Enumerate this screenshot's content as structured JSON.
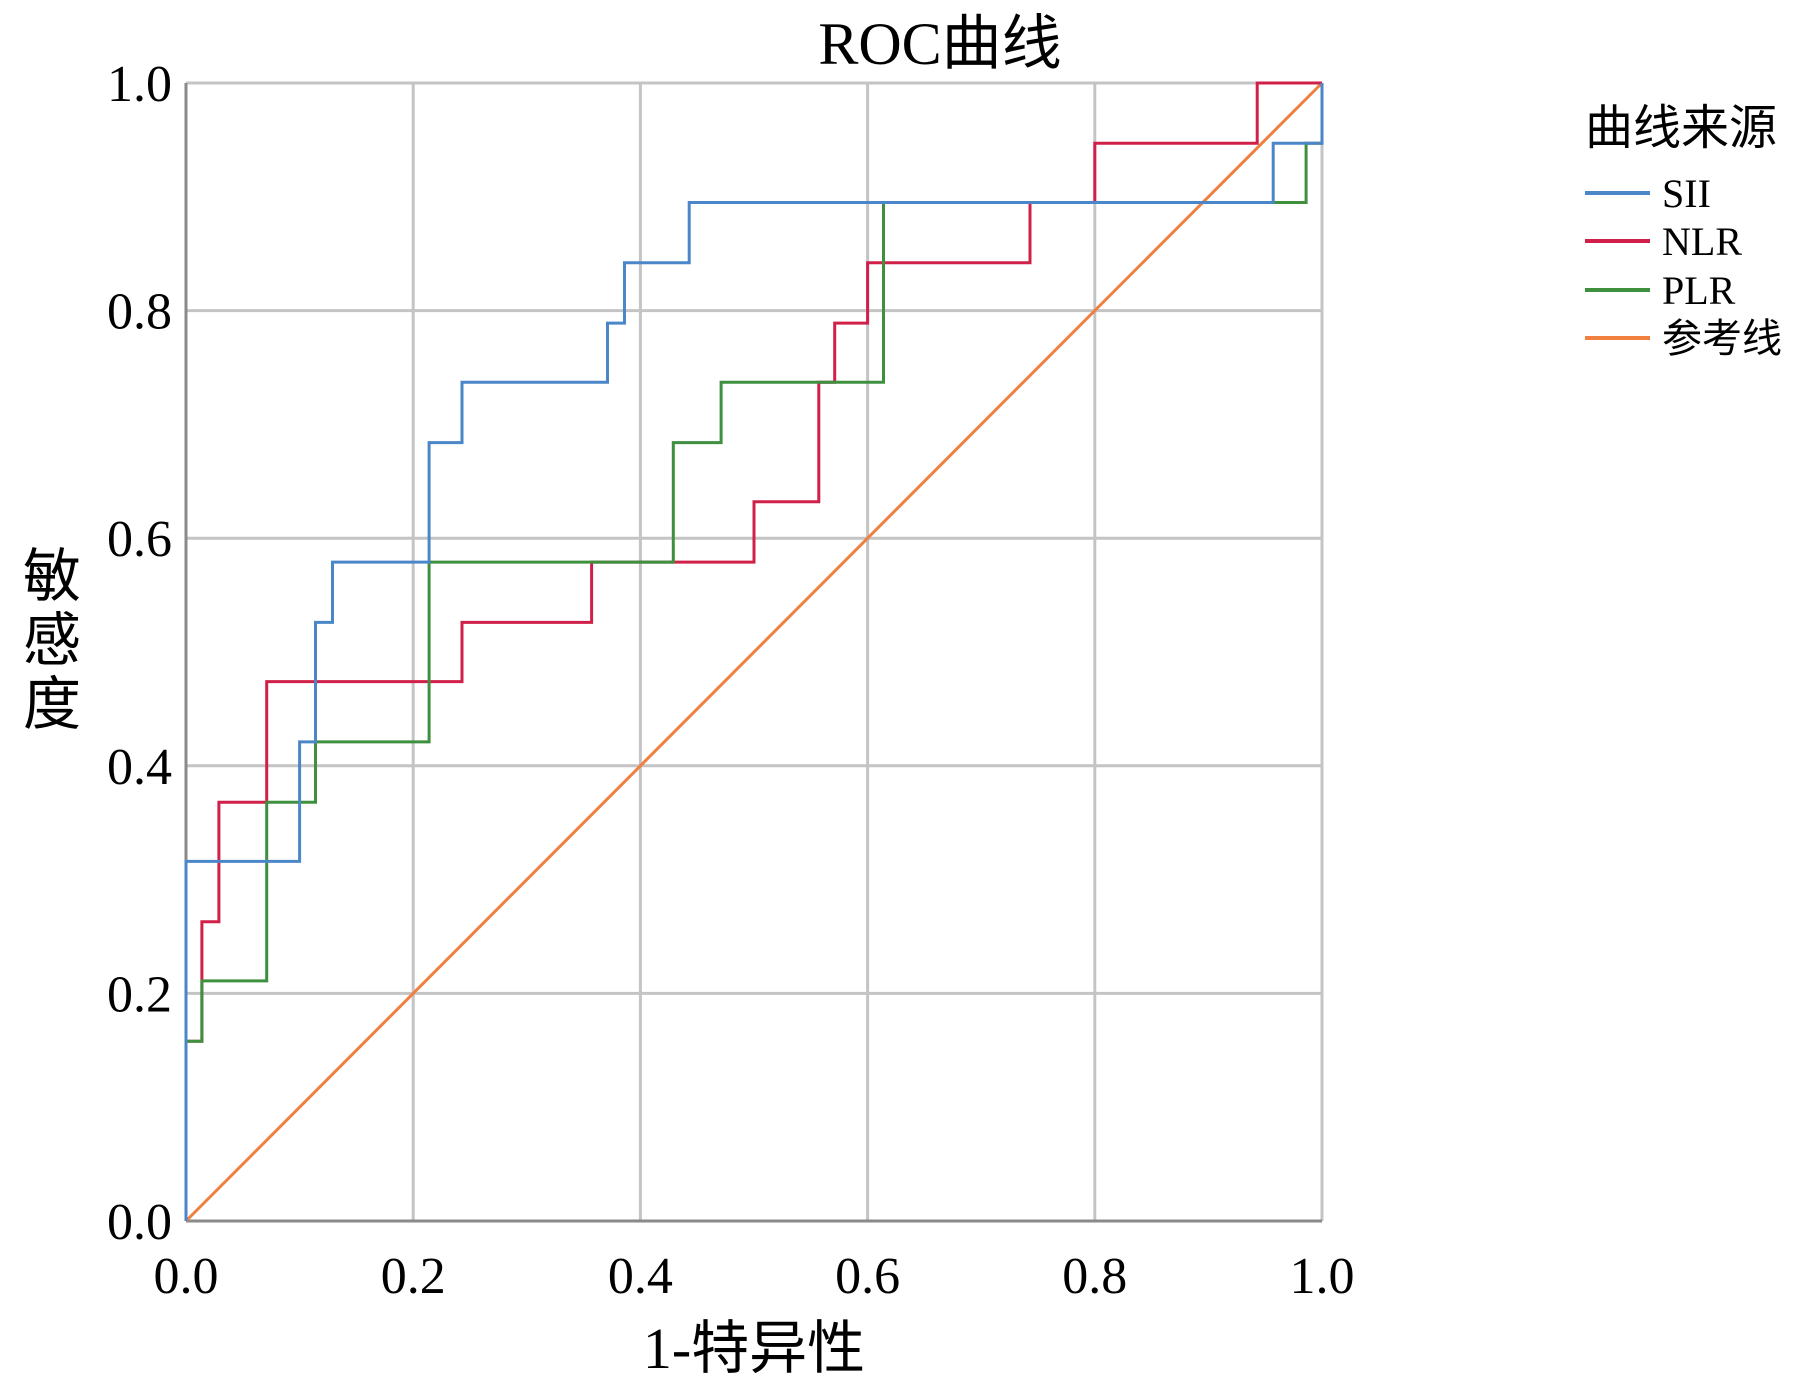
{
  "chart_data": {
    "type": "line",
    "title": "ROC曲线",
    "xlabel": "1-特异性",
    "ylabel": "敏感度",
    "xlim": [
      0,
      1
    ],
    "ylim": [
      0,
      1
    ],
    "x_ticks": [
      "0.0",
      "0.2",
      "0.4",
      "0.6",
      "0.8",
      "1.0"
    ],
    "y_ticks": [
      "0.0",
      "0.2",
      "0.4",
      "0.6",
      "0.8",
      "1.0"
    ],
    "grid": true,
    "legend_title": "曲线来源",
    "legend_position": "right",
    "step": true,
    "series": [
      {
        "name": "SII",
        "color": "#4a86c8",
        "points": [
          [
            0,
            0
          ],
          [
            0,
            0.158
          ],
          [
            0,
            0.316
          ],
          [
            0.1,
            0.316
          ],
          [
            0.1,
            0.421
          ],
          [
            0.114,
            0.421
          ],
          [
            0.114,
            0.526
          ],
          [
            0.129,
            0.526
          ],
          [
            0.129,
            0.579
          ],
          [
            0.214,
            0.579
          ],
          [
            0.214,
            0.684
          ],
          [
            0.243,
            0.684
          ],
          [
            0.243,
            0.737
          ],
          [
            0.371,
            0.737
          ],
          [
            0.371,
            0.789
          ],
          [
            0.386,
            0.789
          ],
          [
            0.386,
            0.842
          ],
          [
            0.443,
            0.842
          ],
          [
            0.443,
            0.895
          ],
          [
            0.957,
            0.895
          ],
          [
            0.957,
            0.947
          ],
          [
            1,
            0.947
          ],
          [
            1,
            1
          ]
        ]
      },
      {
        "name": "NLR",
        "color": "#d0204a",
        "points": [
          [
            0,
            0
          ],
          [
            0,
            0.158
          ],
          [
            0.014,
            0.158
          ],
          [
            0.014,
            0.263
          ],
          [
            0.029,
            0.263
          ],
          [
            0.029,
            0.368
          ],
          [
            0.071,
            0.368
          ],
          [
            0.071,
            0.474
          ],
          [
            0.243,
            0.474
          ],
          [
            0.243,
            0.526
          ],
          [
            0.357,
            0.526
          ],
          [
            0.357,
            0.579
          ],
          [
            0.5,
            0.579
          ],
          [
            0.5,
            0.632
          ],
          [
            0.557,
            0.632
          ],
          [
            0.557,
            0.737
          ],
          [
            0.571,
            0.737
          ],
          [
            0.571,
            0.789
          ],
          [
            0.6,
            0.789
          ],
          [
            0.6,
            0.842
          ],
          [
            0.743,
            0.842
          ],
          [
            0.743,
            0.895
          ],
          [
            0.8,
            0.895
          ],
          [
            0.8,
            0.947
          ],
          [
            0.943,
            0.947
          ],
          [
            0.943,
            1
          ],
          [
            1,
            1
          ]
        ]
      },
      {
        "name": "PLR",
        "color": "#3e8f3e",
        "points": [
          [
            0,
            0
          ],
          [
            0,
            0.158
          ],
          [
            0.014,
            0.158
          ],
          [
            0.014,
            0.211
          ],
          [
            0.071,
            0.211
          ],
          [
            0.071,
            0.368
          ],
          [
            0.114,
            0.368
          ],
          [
            0.114,
            0.421
          ],
          [
            0.214,
            0.421
          ],
          [
            0.214,
            0.579
          ],
          [
            0.429,
            0.579
          ],
          [
            0.429,
            0.684
          ],
          [
            0.471,
            0.684
          ],
          [
            0.471,
            0.737
          ],
          [
            0.614,
            0.737
          ],
          [
            0.614,
            0.895
          ],
          [
            0.986,
            0.895
          ],
          [
            0.986,
            0.947
          ],
          [
            1,
            0.947
          ],
          [
            1,
            1
          ]
        ]
      },
      {
        "name": "参考线",
        "color": "#f08040",
        "points": [
          [
            0,
            0
          ],
          [
            1,
            1
          ]
        ]
      }
    ]
  }
}
